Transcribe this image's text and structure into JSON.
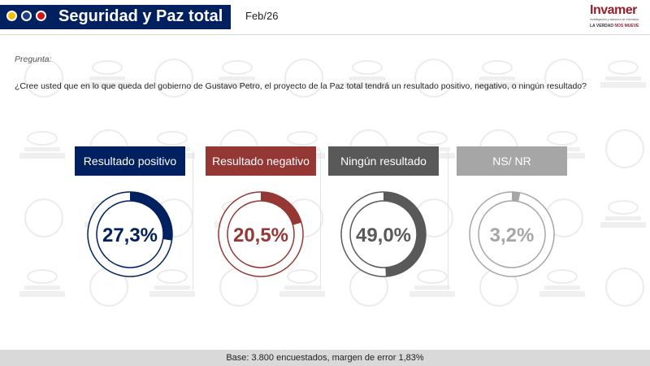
{
  "header": {
    "title": "Seguridad y Paz total",
    "date": "Feb/26",
    "dot_colors": [
      "#f2c200",
      "#1f3c88",
      "#d0121b"
    ],
    "logo": {
      "name": "Invamer",
      "subtitle": "investigación y asesoría de mercados",
      "tagline_a": "LA VERDAD",
      "tagline_b": "NOS MUEVE"
    }
  },
  "question": {
    "label": "Pregunta:",
    "text": "¿Cree usted que en lo que queda del gobierno de Gustavo Petro, el proyecto de la Paz total tendrá un resultado positivo, negativo, o ningún resultado?"
  },
  "chart_data": {
    "type": "pie",
    "categories": [
      "Resultado positivo",
      "Resultado negativo",
      "Ningún resultado",
      "NS/ NR"
    ],
    "values": [
      27.3,
      20.5,
      49.0,
      3.2
    ],
    "value_labels": [
      "27,3%",
      "20,5%",
      "49,0%",
      "3,2%"
    ],
    "colors": [
      "#002060",
      "#953735",
      "#595959",
      "#a6a6a6"
    ],
    "unit": "%"
  },
  "footer": {
    "text": "Base: 3.800 encuestados, margen de error 1,83%"
  }
}
